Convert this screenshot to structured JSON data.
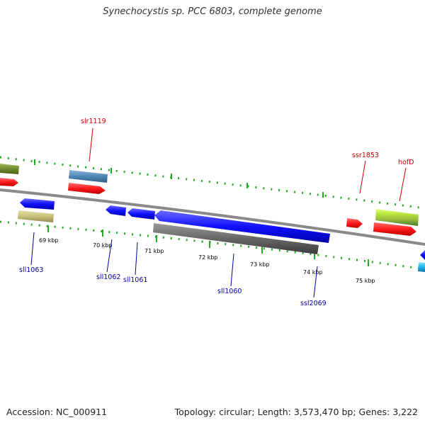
{
  "title": "Synechocystis sp. PCC 6803, complete genome",
  "footer": {
    "accession": "Accession: NC_000911",
    "summary": "Topology: circular; Length: 3,573,470 bp; Genes: 3,222"
  },
  "colors": {
    "forward_label": "#cc0000",
    "reverse_label": "#0000aa",
    "tick": "#22aa22",
    "backbone": "#8a8a8a"
  },
  "scale": [
    "69 kbp",
    "70 kbp",
    "71 kbp",
    "72 kbp",
    "73 kbp",
    "74 kbp",
    "75 kbp"
  ],
  "forward_genes": [
    {
      "name": "slr1119",
      "color": "#4f86b5"
    },
    {
      "name": "ssr1853",
      "color": "#ff1a1a"
    },
    {
      "name": "hofD",
      "color": "#ff1a1a"
    }
  ],
  "reverse_genes": [
    {
      "name": "sll1063",
      "color": "#1010ff"
    },
    {
      "name": "sll1062",
      "color": "#1010ff"
    },
    {
      "name": "sll1061",
      "color": "#1010ff"
    },
    {
      "name": "sll1060",
      "color": "#1010ff"
    },
    {
      "name": "ssl2069",
      "color": "#666666"
    }
  ]
}
